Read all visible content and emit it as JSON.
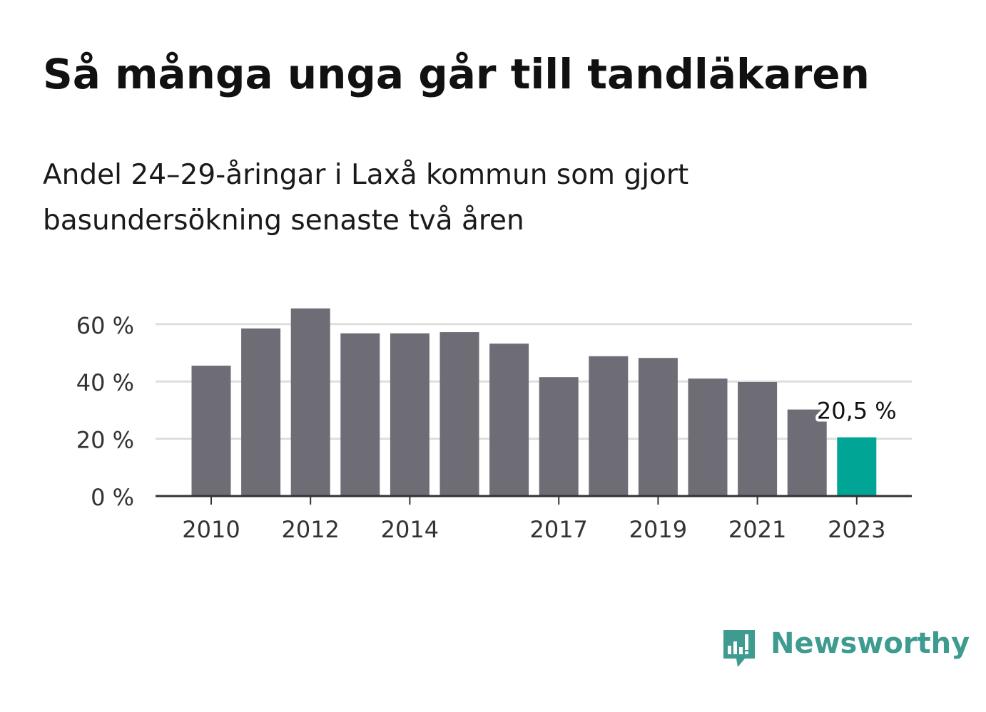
{
  "header": {
    "title": "Så många unga går till tandläkaren",
    "subtitle": "Andel 24–29-åringar i Laxå kommun som gjort basundersökning senaste två åren"
  },
  "logo": {
    "text": "Newsworthy",
    "icon": "bar-chart-speech-bubble-icon",
    "color": "#3d9b90"
  },
  "chart_data": {
    "type": "bar",
    "title": "Så många unga går till tandläkaren",
    "subtitle": "Andel 24–29-åringar i Laxå kommun som gjort basundersökning senaste två åren",
    "xlabel": "",
    "ylabel": "",
    "categories": [
      "2010",
      "2011",
      "2012",
      "2013",
      "2014",
      "2015",
      "2016",
      "2017",
      "2018",
      "2019",
      "2020",
      "2021",
      "2022",
      "2023"
    ],
    "values": [
      45.5,
      58.5,
      65.5,
      56.8,
      56.8,
      57.2,
      53.2,
      41.5,
      48.8,
      48.2,
      41.0,
      39.8,
      30.2,
      20.5
    ],
    "ylim": [
      0,
      65.5
    ],
    "yticks": [
      0,
      20,
      40,
      60
    ],
    "ytick_labels": [
      "0 %",
      "20 %",
      "40 %",
      "60 %"
    ],
    "xtick_labels": [
      "2010",
      "2012",
      "2014",
      "2017",
      "2019",
      "2021",
      "2023"
    ],
    "highlight_index": 13,
    "highlight_label": "20,5 %",
    "colors": {
      "bar": "#6e6d75",
      "highlight": "#00a596",
      "grid": "#dedede",
      "axis": "#333333",
      "label": "#333333"
    },
    "grid": true,
    "legend": "none"
  }
}
